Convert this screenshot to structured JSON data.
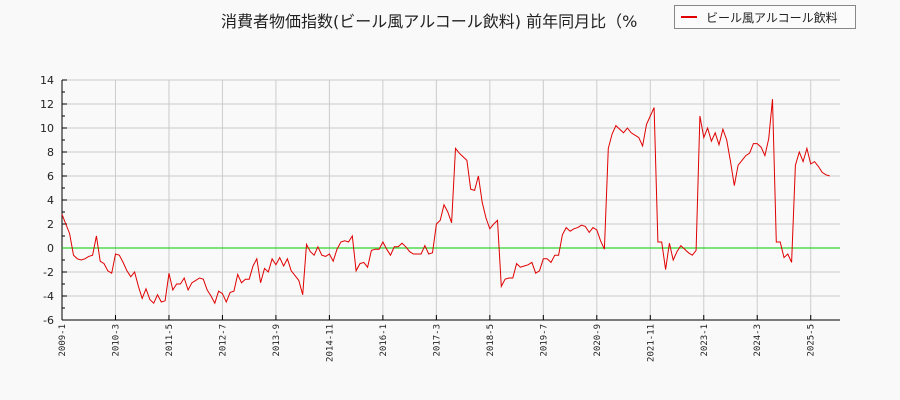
{
  "title": "消費者物価指数(ビール風アルコール飲料) 前年同月比（%",
  "legend": {
    "label": "ビール風アルコール飲料",
    "color": "#e00000"
  },
  "colors": {
    "series": "#e00000",
    "zero_line": "#00cc00",
    "grid": "#cccccc",
    "background": "#f9f9f9"
  },
  "chart_data": {
    "type": "line",
    "title": "消費者物価指数(ビール風アルコール飲料) 前年同月比（%",
    "xlabel": "",
    "ylabel": "",
    "ylim": [
      -6,
      14
    ],
    "yticks": [
      -6,
      -4,
      -2,
      0,
      2,
      4,
      6,
      8,
      10,
      12,
      14
    ],
    "xticks": [
      "2009-1",
      "2010-3",
      "2011-5",
      "2012-7",
      "2013-9",
      "2014-11",
      "2016-1",
      "2017-3",
      "2018-5",
      "2019-7",
      "2020-9",
      "2021-11",
      "2023-1",
      "2024-3",
      "2025-5"
    ],
    "grid": true,
    "legend_position": "top-right",
    "start": "2009-1",
    "series": [
      {
        "name": "ビール風アルコール飲料",
        "values": [
          2.8,
          2.0,
          1.2,
          -0.6,
          -0.9,
          -1.0,
          -0.9,
          -0.7,
          -0.6,
          1.0,
          -1.1,
          -1.3,
          -1.9,
          -2.1,
          -0.5,
          -0.6,
          -1.2,
          -1.9,
          -2.4,
          -2.0,
          -3.2,
          -4.2,
          -3.4,
          -4.3,
          -4.6,
          -3.9,
          -4.5,
          -4.4,
          -2.1,
          -3.5,
          -3.0,
          -3.0,
          -2.5,
          -3.5,
          -2.9,
          -2.7,
          -2.5,
          -2.6,
          -3.5,
          -4.0,
          -4.6,
          -3.6,
          -3.8,
          -4.5,
          -3.7,
          -3.6,
          -2.2,
          -2.9,
          -2.6,
          -2.6,
          -1.5,
          -0.9,
          -2.9,
          -1.7,
          -2.0,
          -0.9,
          -1.4,
          -0.8,
          -1.5,
          -0.9,
          -1.9,
          -2.3,
          -2.7,
          -3.9,
          0.3,
          -0.3,
          -0.6,
          0.1,
          -0.6,
          -0.7,
          -0.5,
          -1.1,
          -0.1,
          0.5,
          0.6,
          0.5,
          1.0,
          -1.9,
          -1.3,
          -1.2,
          -1.6,
          -0.2,
          -0.1,
          -0.1,
          0.5,
          -0.1,
          -0.6,
          0.1,
          0.1,
          0.4,
          0.1,
          -0.3,
          -0.5,
          -0.5,
          -0.5,
          0.2,
          -0.5,
          -0.4,
          2.0,
          2.3,
          3.6,
          3.0,
          2.1,
          8.3,
          7.9,
          7.6,
          7.3,
          4.9,
          4.8,
          6.0,
          3.8,
          2.5,
          1.6,
          2.0,
          2.3,
          -3.2,
          -2.6,
          -2.5,
          -2.5,
          -1.3,
          -1.6,
          -1.5,
          -1.4,
          -1.2,
          -2.1,
          -1.9,
          -0.9,
          -0.9,
          -1.2,
          -0.6,
          -0.6,
          1.1,
          1.7,
          1.4,
          1.6,
          1.7,
          1.9,
          1.8,
          1.3,
          1.7,
          1.5,
          0.6,
          -0.1,
          8.3,
          9.5,
          10.2,
          9.9,
          9.6,
          10.0,
          9.6,
          9.4,
          9.2,
          8.5,
          10.3,
          11.0,
          11.7,
          0.5,
          0.5,
          -1.8,
          0.4,
          -1.0,
          -0.3,
          0.2,
          -0.1,
          -0.4,
          -0.6,
          -0.2,
          11.0,
          9.2,
          10.0,
          8.9,
          9.6,
          8.6,
          9.9,
          9.0,
          7.2,
          5.2,
          6.9,
          7.3,
          7.7,
          7.9,
          8.7,
          8.7,
          8.4,
          7.7,
          9.1,
          12.4,
          0.5,
          0.5,
          -0.8,
          -0.5,
          -1.2,
          6.9,
          8.0,
          7.2,
          8.3,
          7.0,
          7.2,
          6.8,
          6.3,
          6.1,
          6.0
        ]
      }
    ]
  }
}
